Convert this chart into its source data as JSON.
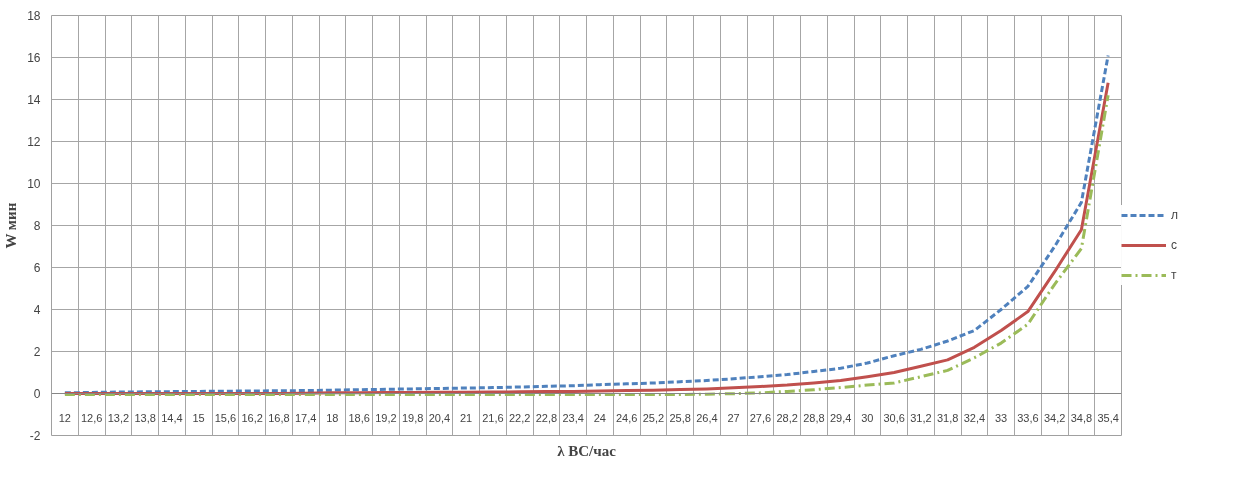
{
  "chart_data": {
    "type": "line",
    "xlabel": "λ ВС/час",
    "ylabel": "W мин",
    "categories": [
      "12",
      "12,6",
      "13,2",
      "13,8",
      "14,4",
      "15",
      "15,6",
      "16,2",
      "16,8",
      "17,4",
      "18",
      "18,6",
      "19,2",
      "19,8",
      "20,4",
      "21",
      "21,6",
      "22,2",
      "22,8",
      "23,4",
      "24",
      "24,6",
      "25,2",
      "25,8",
      "26,4",
      "27",
      "27,6",
      "28,2",
      "28,8",
      "29,4",
      "30",
      "30,6",
      "31,2",
      "31,8",
      "32,4",
      "33",
      "33,6",
      "34,2",
      "34,8",
      "35,4"
    ],
    "series": [
      {
        "name": "л",
        "color": "#4f81bd",
        "line_style": "dashed",
        "values": [
          0.03,
          0.05,
          0.07,
          0.08,
          0.09,
          0.1,
          0.11,
          0.12,
          0.13,
          0.14,
          0.16,
          0.18,
          0.2,
          0.22,
          0.24,
          0.26,
          0.28,
          0.31,
          0.34,
          0.37,
          0.42,
          0.46,
          0.5,
          0.56,
          0.62,
          0.7,
          0.8,
          0.9,
          1.05,
          1.2,
          1.45,
          1.8,
          2.1,
          2.5,
          3.0,
          4.0,
          5.1,
          7.0,
          9.1,
          16.1
        ]
      },
      {
        "name": "с",
        "color": "#c0504d",
        "line_style": "solid",
        "values": [
          0,
          0,
          0,
          0,
          0,
          0,
          0,
          0,
          0,
          0.01,
          0.03,
          0.04,
          0.05,
          0.05,
          0.06,
          0.06,
          0.07,
          0.08,
          0.09,
          0.1,
          0.12,
          0.14,
          0.16,
          0.19,
          0.22,
          0.27,
          0.33,
          0.4,
          0.5,
          0.62,
          0.8,
          1.0,
          1.3,
          1.6,
          2.2,
          3.0,
          3.9,
          5.8,
          7.8,
          14.8
        ]
      },
      {
        "name": "т",
        "color": "#9bbb59",
        "line_style": "dashdot",
        "values": [
          -0.05,
          -0.05,
          -0.05,
          -0.05,
          -0.05,
          -0.05,
          -0.05,
          -0.05,
          -0.05,
          -0.05,
          -0.05,
          -0.05,
          -0.05,
          -0.05,
          -0.05,
          -0.05,
          -0.05,
          -0.05,
          -0.05,
          -0.05,
          -0.05,
          -0.05,
          -0.05,
          -0.05,
          -0.03,
          -0.01,
          0.03,
          0.1,
          0.18,
          0.28,
          0.4,
          0.5,
          0.8,
          1.1,
          1.7,
          2.4,
          3.3,
          5.2,
          6.9,
          14.2
        ]
      }
    ],
    "ylim": [
      -2,
      18
    ],
    "yticks": [
      -2,
      0,
      2,
      4,
      6,
      8,
      10,
      12,
      14,
      16,
      18
    ],
    "grid": true,
    "legend": "right",
    "marker": "none"
  }
}
